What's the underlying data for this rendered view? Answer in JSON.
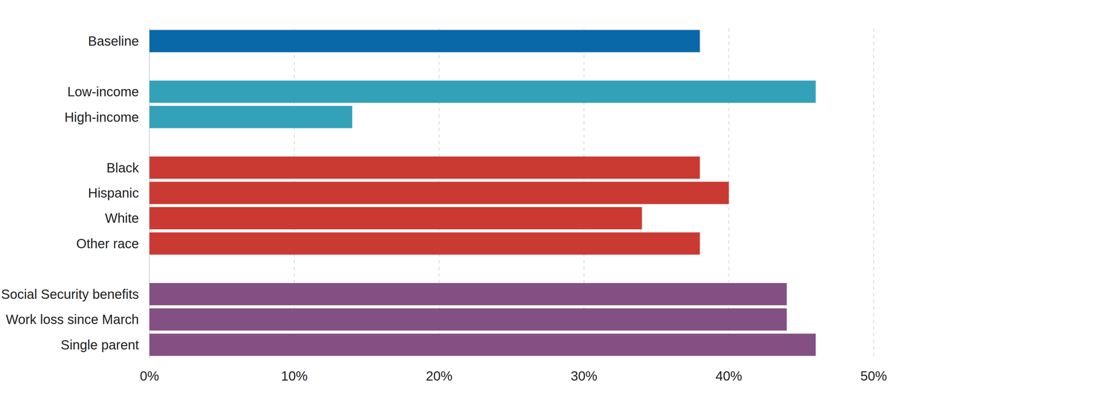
{
  "chart_data": {
    "type": "bar",
    "orientation": "horizontal",
    "categories": [
      "Baseline",
      null,
      "Low-income",
      "High-income",
      null,
      "Black",
      "Hispanic",
      "White",
      "Other race",
      null,
      "Social Security benefits",
      "Work loss since March",
      "Single parent"
    ],
    "values": [
      38,
      null,
      46,
      14,
      null,
      38,
      40,
      34,
      38,
      null,
      44,
      44,
      46
    ],
    "colors": [
      "#0868a8",
      null,
      "#33a2b8",
      "#33a2b8",
      null,
      "#cb3a32",
      "#cb3a32",
      "#cb3a32",
      "#cb3a32",
      null,
      "#845084",
      "#845084",
      "#845084"
    ],
    "xlim": [
      0,
      50
    ],
    "xticks": [
      {
        "value": 0,
        "label": "0%"
      },
      {
        "value": 10,
        "label": "10%"
      },
      {
        "value": 20,
        "label": "20%"
      },
      {
        "value": 30,
        "label": "30%"
      },
      {
        "value": 40,
        "label": "40%"
      },
      {
        "value": 50,
        "label": "50%"
      }
    ],
    "grid": true
  }
}
